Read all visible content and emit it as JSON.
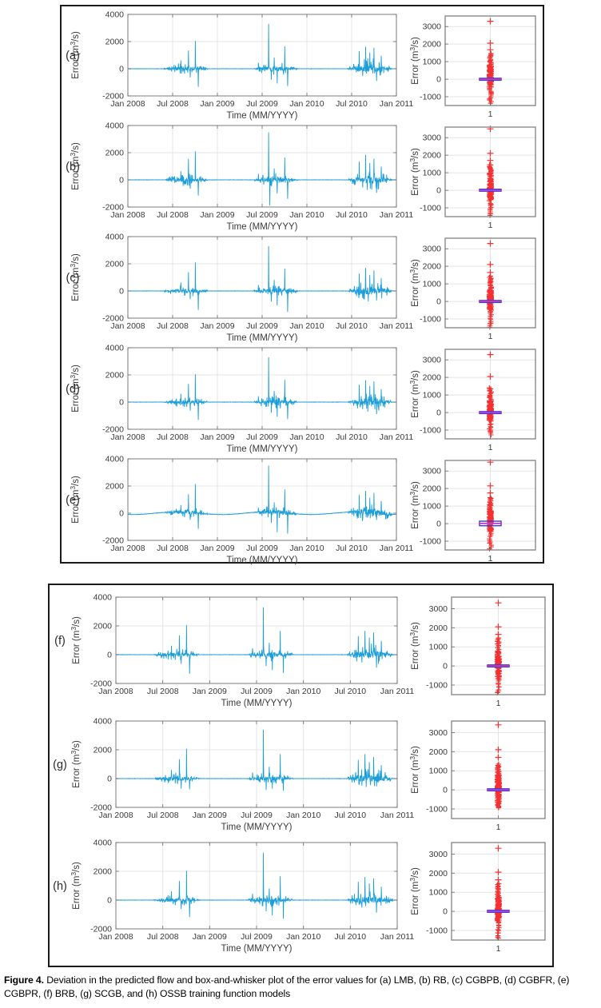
{
  "caption": {
    "bold": "Figure 4.",
    "rest": " Deviation in the predicted flow and box-and-whisker plot of the error values for (a) LMB, (b) RB, (c) CGBPB, (d) CGBFR, (e) CGBPR, (f) BRB, (g) SCGB, and (h) OSSB training function models"
  },
  "colors": {
    "line": "#1b9ed9",
    "outlier": "#f53030",
    "box": "#3a3ae0",
    "median": "#bf3fbf",
    "frame": "#7d7d7d",
    "bp_frame": "#8a8a8a",
    "grid": "#e4e4e4",
    "tick_text": "#3a3a3a",
    "group_border": "#1a1a1a"
  },
  "chart_data": {
    "layout": "two bordered groups: rows (a)-(e) on top, (f)-(h) below; each row = error time-series (left) + box-and-whisker of the same errors (right)",
    "time_axis": {
      "xlabel": "Time (MM/YYYY)",
      "xticks": [
        "Jan 2008",
        "Jul 2008",
        "Jan 2009",
        "Jul 2009",
        "Jan 2010",
        "Jul 2010",
        "Jan 2011"
      ],
      "xlim_years": [
        2008,
        2011
      ]
    },
    "error_axis_timeseries": {
      "ylabel_pre": "Error (m",
      "ylabel_sup": "3",
      "ylabel_post": "/s)",
      "yticks": [
        -2000,
        0,
        2000,
        4000
      ],
      "ylim": [
        -2000,
        4000
      ],
      "grid": true
    },
    "error_axis_boxplot": {
      "ylabel_pre": "Error (m",
      "ylabel_sup": "3",
      "ylabel_post": "/s)",
      "yticks": [
        -1000,
        0,
        1000,
        2000,
        3000
      ],
      "ylim": [
        -1500,
        3600
      ],
      "xtick": "1",
      "grid": true
    },
    "panels": [
      {
        "label": "(a)",
        "model": "LMB",
        "type": "line+box",
        "seed": 7,
        "baseline": "flat",
        "burst_amps": [
          260,
          300,
          460
        ],
        "spikes": [
          [
            0.593,
            620
          ],
          [
            0.632,
            -360
          ],
          [
            0.676,
            1350
          ],
          [
            0.697,
            -640
          ],
          [
            0.753,
            2050
          ],
          [
            0.787,
            -1330
          ],
          [
            1.458,
            440
          ],
          [
            1.573,
            3300
          ],
          [
            1.602,
            -800
          ],
          [
            1.636,
            830
          ],
          [
            1.668,
            -1080
          ],
          [
            1.752,
            1650
          ],
          [
            1.784,
            -1270
          ],
          [
            2.585,
            1300
          ],
          [
            2.623,
            -540
          ],
          [
            2.657,
            1630
          ],
          [
            2.703,
            1190
          ],
          [
            2.748,
            1540
          ],
          [
            2.778,
            -900
          ],
          [
            2.832,
            960
          ]
        ],
        "boxplot": {
          "median": 0,
          "q1": -45,
          "q3": 55,
          "dense_outliers": [
            -550,
            800
          ],
          "sparse_pos": [
            850,
            1500
          ],
          "sparse_neg": [
            -1400,
            -620
          ],
          "extremes": [
            1680,
            2050,
            3300
          ]
        }
      },
      {
        "label": "(b)",
        "model": "RB",
        "type": "line+box",
        "seed": 11,
        "baseline": "flat",
        "burst_amps": [
          280,
          300,
          470
        ],
        "spikes": [
          [
            0.593,
            640
          ],
          [
            0.632,
            -380
          ],
          [
            0.676,
            1550
          ],
          [
            0.697,
            -660
          ],
          [
            0.753,
            2100
          ],
          [
            0.787,
            -1150
          ],
          [
            1.458,
            450
          ],
          [
            1.573,
            3500
          ],
          [
            1.585,
            -1900
          ],
          [
            1.636,
            840
          ],
          [
            1.668,
            -1000
          ],
          [
            1.752,
            1650
          ],
          [
            1.784,
            -1400
          ],
          [
            2.585,
            1350
          ],
          [
            2.623,
            -560
          ],
          [
            2.657,
            1830
          ],
          [
            2.703,
            1250
          ],
          [
            2.748,
            1560
          ],
          [
            2.778,
            -950
          ],
          [
            2.832,
            980
          ]
        ],
        "boxplot": {
          "median": 0,
          "q1": -50,
          "q3": 60,
          "dense_outliers": [
            -620,
            900
          ],
          "sparse_pos": [
            950,
            1500
          ],
          "sparse_neg": [
            -1500,
            -680
          ],
          "extremes": [
            1700,
            2100,
            3500
          ]
        }
      },
      {
        "label": "(c)",
        "model": "CGBPB",
        "type": "line+box",
        "seed": 13,
        "baseline": "flat",
        "burst_amps": [
          260,
          300,
          470
        ],
        "spikes": [
          [
            0.593,
            620
          ],
          [
            0.632,
            -350
          ],
          [
            0.676,
            1380
          ],
          [
            0.697,
            -600
          ],
          [
            0.753,
            2100
          ],
          [
            0.787,
            -1400
          ],
          [
            1.458,
            430
          ],
          [
            1.573,
            3300
          ],
          [
            1.602,
            -780
          ],
          [
            1.636,
            820
          ],
          [
            1.668,
            -1060
          ],
          [
            1.752,
            1650
          ],
          [
            1.784,
            -1550
          ],
          [
            2.585,
            1280
          ],
          [
            2.623,
            -520
          ],
          [
            2.657,
            1700
          ],
          [
            2.703,
            1180
          ],
          [
            2.748,
            1520
          ],
          [
            2.778,
            -700
          ],
          [
            2.832,
            950
          ]
        ],
        "boxplot": {
          "median": 0,
          "q1": -50,
          "q3": 55,
          "dense_outliers": [
            -560,
            800
          ],
          "sparse_pos": [
            850,
            1450
          ],
          "sparse_neg": [
            -1500,
            -640
          ],
          "extremes": [
            1650,
            2100,
            3300
          ]
        }
      },
      {
        "label": "(d)",
        "model": "CGBFR",
        "type": "line+box",
        "seed": 17,
        "baseline": "flat",
        "burst_amps": [
          260,
          290,
          460
        ],
        "spikes": [
          [
            0.593,
            610
          ],
          [
            0.632,
            -360
          ],
          [
            0.676,
            1340
          ],
          [
            0.697,
            -630
          ],
          [
            0.753,
            2050
          ],
          [
            0.787,
            -1320
          ],
          [
            1.458,
            430
          ],
          [
            1.573,
            3300
          ],
          [
            1.602,
            -790
          ],
          [
            1.636,
            820
          ],
          [
            1.668,
            -1070
          ],
          [
            1.752,
            1640
          ],
          [
            1.784,
            -1260
          ],
          [
            2.585,
            1290
          ],
          [
            2.623,
            -530
          ],
          [
            2.657,
            1620
          ],
          [
            2.703,
            1180
          ],
          [
            2.748,
            1530
          ],
          [
            2.778,
            -890
          ],
          [
            2.832,
            950
          ]
        ],
        "boxplot": {
          "median": 0,
          "q1": -45,
          "q3": 55,
          "dense_outliers": [
            -520,
            760
          ],
          "sparse_pos": [
            820,
            1450
          ],
          "sparse_neg": [
            -1300,
            -600
          ],
          "extremes": [
            2050,
            3300
          ]
        }
      },
      {
        "label": "(e)",
        "model": "CGBPR",
        "type": "line+box",
        "seed": 19,
        "baseline": "seasonal",
        "burst_amps": [
          250,
          290,
          450
        ],
        "spikes": [
          [
            0.593,
            600
          ],
          [
            0.632,
            -300
          ],
          [
            0.676,
            1400
          ],
          [
            0.697,
            -500
          ],
          [
            0.753,
            2150
          ],
          [
            0.787,
            -1150
          ],
          [
            1.458,
            420
          ],
          [
            1.573,
            3500
          ],
          [
            1.602,
            -700
          ],
          [
            1.636,
            800
          ],
          [
            1.668,
            -1400
          ],
          [
            1.752,
            1750
          ],
          [
            1.784,
            -1500
          ],
          [
            2.585,
            1350
          ],
          [
            2.623,
            -450
          ],
          [
            2.657,
            1650
          ],
          [
            2.703,
            1150
          ],
          [
            2.748,
            1500
          ],
          [
            2.778,
            -500
          ],
          [
            2.832,
            900
          ]
        ],
        "boxplot": {
          "median": 10,
          "q1": -120,
          "q3": 140,
          "dense_outliers": [
            -420,
            900
          ],
          "sparse_pos": [
            950,
            1500
          ],
          "sparse_neg": [
            -1450,
            -520
          ],
          "extremes": [
            1750,
            2150,
            3500
          ]
        }
      },
      {
        "label": "(f)",
        "model": "BRB",
        "type": "line+box",
        "seed": 23,
        "baseline": "flat",
        "burst_amps": [
          250,
          290,
          450
        ],
        "spikes": [
          [
            0.593,
            620
          ],
          [
            0.632,
            -360
          ],
          [
            0.676,
            1350
          ],
          [
            0.697,
            -640
          ],
          [
            0.753,
            2050
          ],
          [
            0.787,
            -1330
          ],
          [
            1.458,
            440
          ],
          [
            1.573,
            3300
          ],
          [
            1.602,
            -800
          ],
          [
            1.636,
            830
          ],
          [
            1.668,
            -1080
          ],
          [
            1.752,
            1650
          ],
          [
            1.784,
            -1270
          ],
          [
            2.585,
            1300
          ],
          [
            2.623,
            -540
          ],
          [
            2.657,
            1650
          ],
          [
            2.703,
            1190
          ],
          [
            2.748,
            1540
          ],
          [
            2.778,
            -900
          ],
          [
            2.832,
            960
          ]
        ],
        "boxplot": {
          "median": 0,
          "q1": -45,
          "q3": 55,
          "dense_outliers": [
            -550,
            800
          ],
          "sparse_pos": [
            850,
            1480
          ],
          "sparse_neg": [
            -1420,
            -620
          ],
          "extremes": [
            1650,
            2050,
            3300
          ]
        }
      },
      {
        "label": "(g)",
        "model": "SCGB",
        "type": "line+box",
        "seed": 29,
        "baseline": "flat",
        "burst_amps": [
          250,
          280,
          440
        ],
        "spikes": [
          [
            0.593,
            600
          ],
          [
            0.632,
            -340
          ],
          [
            0.676,
            1350
          ],
          [
            0.697,
            -700
          ],
          [
            0.753,
            2080
          ],
          [
            0.787,
            -750
          ],
          [
            1.458,
            420
          ],
          [
            1.573,
            3400
          ],
          [
            1.602,
            -800
          ],
          [
            1.636,
            820
          ],
          [
            1.668,
            -700
          ],
          [
            1.752,
            1700
          ],
          [
            1.784,
            -850
          ],
          [
            2.585,
            1300
          ],
          [
            2.623,
            -500
          ],
          [
            2.657,
            1700
          ],
          [
            2.703,
            1150
          ],
          [
            2.748,
            1500
          ],
          [
            2.778,
            -550
          ],
          [
            2.832,
            930
          ]
        ],
        "boxplot": {
          "median": 0,
          "q1": -45,
          "q3": 55,
          "dense_outliers": [
            -520,
            820
          ],
          "sparse_pos": [
            860,
            1350
          ],
          "sparse_neg": [
            -950,
            -560
          ],
          "extremes": [
            1700,
            2100,
            3400
          ]
        }
      },
      {
        "label": "(h)",
        "model": "OSSB",
        "type": "line+box",
        "seed": 31,
        "baseline": "flat",
        "burst_amps": [
          250,
          280,
          440
        ],
        "spikes": [
          [
            0.593,
            610
          ],
          [
            0.632,
            -350
          ],
          [
            0.676,
            1340
          ],
          [
            0.697,
            -620
          ],
          [
            0.753,
            2040
          ],
          [
            0.787,
            -1180
          ],
          [
            1.458,
            430
          ],
          [
            1.573,
            3300
          ],
          [
            1.602,
            -780
          ],
          [
            1.636,
            810
          ],
          [
            1.668,
            -1060
          ],
          [
            1.752,
            1660
          ],
          [
            1.784,
            -1300
          ],
          [
            2.585,
            1280
          ],
          [
            2.623,
            -520
          ],
          [
            2.657,
            1600
          ],
          [
            2.703,
            1160
          ],
          [
            2.748,
            1510
          ],
          [
            2.778,
            -880
          ],
          [
            2.832,
            940
          ]
        ],
        "boxplot": {
          "median": 0,
          "q1": -45,
          "q3": 55,
          "dense_outliers": [
            -540,
            790
          ],
          "sparse_pos": [
            840,
            1460
          ],
          "sparse_neg": [
            -1450,
            -640
          ],
          "extremes": [
            1650,
            2050,
            3300
          ]
        }
      }
    ]
  }
}
